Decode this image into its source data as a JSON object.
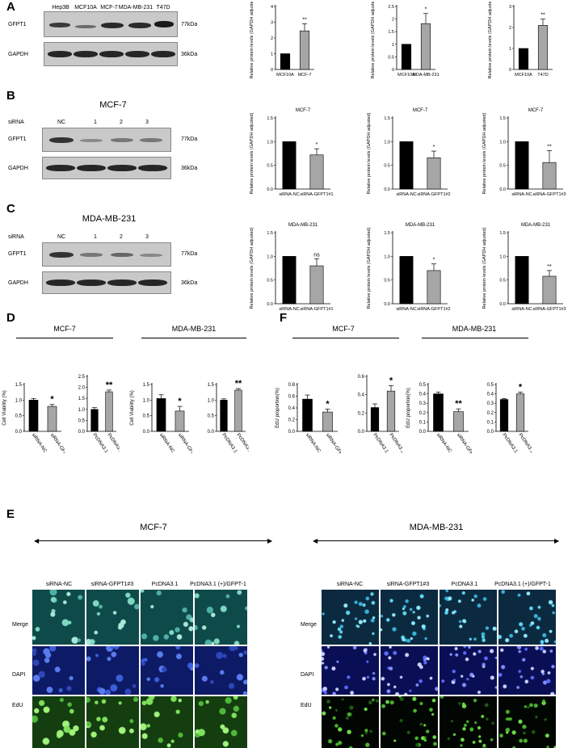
{
  "panels": {
    "A": {
      "letter": "A",
      "lanes": [
        "Hep3B",
        "MCF10A",
        "MCF-7",
        "MDA-MB-231",
        "T47D"
      ],
      "rows": [
        "GFPT1",
        "GAPDH"
      ],
      "kda": [
        "77kDa",
        "36kDa"
      ],
      "charts": [
        {
          "ylabel": "Relative protein levels (GAPDH adjusted)",
          "categories": [
            "MCF10A",
            "MCF-7"
          ],
          "values": [
            1.0,
            2.45
          ],
          "errors": [
            0,
            0.45
          ],
          "sig": "**",
          "ylim": [
            0,
            4
          ],
          "ticks": [
            0,
            1,
            2,
            3,
            4
          ]
        },
        {
          "ylabel": "Relative protein levels (GAPDH adjusted)",
          "categories": [
            "MCF10A",
            "MDA-MB-231"
          ],
          "values": [
            1.0,
            1.82
          ],
          "errors": [
            0,
            0.4
          ],
          "sig": "*",
          "ylim": [
            0,
            2.5
          ],
          "ticks": [
            0.0,
            0.5,
            1.0,
            1.5,
            2.0,
            2.5
          ]
        },
        {
          "ylabel": "Relative protein levels (GAPDH adjusted)",
          "categories": [
            "MCF10A",
            "T47D"
          ],
          "values": [
            1.0,
            2.1
          ],
          "errors": [
            0,
            0.3
          ],
          "sig": "**",
          "ylim": [
            0,
            3
          ],
          "ticks": [
            0,
            1,
            2,
            3
          ]
        }
      ]
    },
    "B": {
      "letter": "B",
      "title": "MCF-7",
      "sirna_label": "siRNA",
      "lanes": [
        "NC",
        "1",
        "2",
        "3"
      ],
      "rows": [
        "GFPT1",
        "GAPDH"
      ],
      "kda": [
        "77kDa",
        "36kDa"
      ],
      "charts": [
        {
          "title": "MCF-7",
          "ylabel": "Relative protein levels (GAPDH adjusted)",
          "categories": [
            "siRNA-NC",
            "siRNA-GFPT1#1"
          ],
          "values": [
            1.0,
            0.72
          ],
          "errors": [
            0,
            0.13
          ],
          "sig": "*",
          "ylim": [
            0,
            1.5
          ],
          "ticks": [
            "0.0",
            "0.5",
            "1.0",
            "1.5"
          ]
        },
        {
          "title": "MCF-7",
          "ylabel": "Relative protein levels (GAPDH adjusted)",
          "categories": [
            "siRNA-NC",
            "siRNA-GFPT1#2"
          ],
          "values": [
            1.0,
            0.66
          ],
          "errors": [
            0,
            0.14
          ],
          "sig": "*",
          "ylim": [
            0,
            1.5
          ],
          "ticks": [
            "0.0",
            "0.5",
            "1.0",
            "1.5"
          ]
        },
        {
          "title": "MCF-7",
          "ylabel": "Relative protein levels (GAPDH adjusted)",
          "categories": [
            "siRNA-NC",
            "siRNA-GFPT1#3"
          ],
          "values": [
            1.0,
            0.56
          ],
          "errors": [
            0,
            0.25
          ],
          "sig": "**",
          "ylim": [
            0,
            1.5
          ],
          "ticks": [
            "0.0",
            "0.5",
            "1.0",
            "1.5"
          ]
        }
      ]
    },
    "C": {
      "letter": "C",
      "title": "MDA-MB-231",
      "sirna_label": "siRNA",
      "lanes": [
        "NC",
        "1",
        "2",
        "3"
      ],
      "rows": [
        "GFPT1",
        "GAPDH"
      ],
      "kda": [
        "77kDa",
        "36kDa"
      ],
      "charts": [
        {
          "title": "MDA-MB-231",
          "ylabel": "Relative protein levels (GAPDH adjusted)",
          "categories": [
            "siRNA-NC",
            "siRNA-GFPT1#1"
          ],
          "values": [
            1.0,
            0.8
          ],
          "errors": [
            0,
            0.15
          ],
          "sig": "ns",
          "ylim": [
            0,
            1.5
          ],
          "ticks": [
            "0.0",
            "0.5",
            "1.0",
            "1.5"
          ]
        },
        {
          "title": "MDA-MB-231",
          "ylabel": "Relative protein levels (GAPDH adjusted)",
          "categories": [
            "siRNA-NC",
            "siRNA-GFPT1#2"
          ],
          "values": [
            1.0,
            0.7
          ],
          "errors": [
            0,
            0.14
          ],
          "sig": "*",
          "ylim": [
            0,
            1.5
          ],
          "ticks": [
            "0.0",
            "0.5",
            "1.0",
            "1.5"
          ]
        },
        {
          "title": "MDA-MB-231",
          "ylabel": "Relative protein levels (GAPDH adjusted)",
          "categories": [
            "siRNA-NC",
            "siRNA-GFPT1#3"
          ],
          "values": [
            1.0,
            0.58
          ],
          "errors": [
            0,
            0.12
          ],
          "sig": "**",
          "ylim": [
            0,
            1.5
          ],
          "ticks": [
            "0.0",
            "0.5",
            "1.0",
            "1.5"
          ]
        }
      ]
    },
    "D": {
      "letter": "D",
      "groups": [
        "MCF-7",
        "MDA-MB-231"
      ],
      "charts": [
        {
          "ylabel": "Cell Viability  (%)",
          "categories": [
            "siRNA-NC",
            "siRNA-GFPT1#3"
          ],
          "values": [
            1.0,
            0.8
          ],
          "errors": [
            0.05,
            0.06
          ],
          "sig": "*",
          "ylim": [
            0,
            1.5
          ],
          "ticks": [
            "0.0",
            "0.5",
            "1.0",
            "1.5"
          ],
          "colors": [
            "#000000",
            "#a6a6a6"
          ]
        },
        {
          "ylabel": "",
          "categories": [
            "PcDNA3.1",
            "PcDNA3.1 (+)/GFPT-1"
          ],
          "values": [
            1.0,
            1.8
          ],
          "errors": [
            0.08,
            0.08
          ],
          "sig": "**",
          "ylim": [
            0,
            2.5
          ],
          "ticks": [
            "0.0",
            "0.5",
            "1.0",
            "1.5",
            "2.0",
            "2.5"
          ],
          "colors": [
            "#000000",
            "#a6a6a6"
          ]
        },
        {
          "ylabel": "Cell Viability  (%)",
          "categories": [
            "siRNA-NC",
            "siRNA-GFPT1#3"
          ],
          "values": [
            1.05,
            0.65
          ],
          "errors": [
            0.12,
            0.15
          ],
          "sig": "*",
          "ylim": [
            0,
            1.5
          ],
          "ticks": [
            "0.0",
            "0.5",
            "1.0",
            "1.5"
          ],
          "colors": [
            "#000000",
            "#a6a6a6"
          ]
        },
        {
          "ylabel": "",
          "categories": [
            "PcDNA3.1",
            "PcDNA3.1 (+)/GFPT-1"
          ],
          "values": [
            1.0,
            1.32
          ],
          "errors": [
            0.04,
            0.05
          ],
          "sig": "**",
          "ylim": [
            0,
            1.5
          ],
          "ticks": [
            "0.0",
            "0.5",
            "1.0",
            "1.5"
          ],
          "colors": [
            "#000000",
            "#a6a6a6"
          ]
        }
      ]
    },
    "F": {
      "letter": "F",
      "groups": [
        "MCF-7",
        "MDA-MB-231"
      ],
      "charts": [
        {
          "ylabel": "EdU proportion(%)",
          "categories": [
            "siRNA-NC",
            "siRNA-GFPT1#3"
          ],
          "values": [
            0.55,
            0.33
          ],
          "errors": [
            0.07,
            0.05
          ],
          "sig": "*",
          "ylim": [
            0,
            0.8
          ],
          "ticks": [
            "0.0",
            "0.2",
            "0.4",
            "0.6",
            "0.8"
          ],
          "colors": [
            "#000000",
            "#a6a6a6"
          ]
        },
        {
          "ylabel": "",
          "categories": [
            "PcDNA3.1",
            "PcDNA3.1 (+)/GFPT-1"
          ],
          "values": [
            0.26,
            0.44
          ],
          "errors": [
            0.04,
            0.06
          ],
          "sig": "*",
          "ylim": [
            0,
            0.6
          ],
          "ticks": [
            "0.0",
            "0.2",
            "0.4",
            "0.6"
          ],
          "colors": [
            "#000000",
            "#a6a6a6"
          ]
        },
        {
          "ylabel": "EdU proportion(%)",
          "categories": [
            "siRNA-NC",
            "siRNA-GFPT1#3"
          ],
          "values": [
            0.4,
            0.21
          ],
          "errors": [
            0.02,
            0.03
          ],
          "sig": "**",
          "ylim": [
            0,
            0.5
          ],
          "ticks": [
            "0.0",
            "0.1",
            "0.2",
            "0.3",
            "0.4",
            "0.5"
          ],
          "colors": [
            "#000000",
            "#a6a6a6"
          ]
        },
        {
          "ylabel": "",
          "categories": [
            "PcDNA3.1",
            "PcDNA3.1 (+)/GFPT-1"
          ],
          "values": [
            0.34,
            0.4
          ],
          "errors": [
            0.01,
            0.02
          ],
          "sig": "*",
          "ylim": [
            0,
            0.5
          ],
          "ticks": [
            "0.0",
            "0.1",
            "0.2",
            "0.3",
            "0.4",
            "0.5"
          ],
          "colors": [
            "#000000",
            "#a6a6a6"
          ]
        }
      ]
    },
    "E": {
      "letter": "E",
      "groups": [
        "MCF-7",
        "MDA-MB-231"
      ],
      "conditions": [
        "siRNA-NC",
        "siRNA-GFPT1#3",
        "PcDNA3.1",
        "PcDNA3.1 (+)/GFPT-1"
      ],
      "channels": [
        "Merge",
        "DAPI",
        "EdU"
      ]
    }
  },
  "colors": {
    "bar_dark": "#000000",
    "bar_light": "#a6a6a6",
    "merge": "#0f4a4a",
    "dapi": "#0d1a66",
    "edu": "#143d10"
  }
}
